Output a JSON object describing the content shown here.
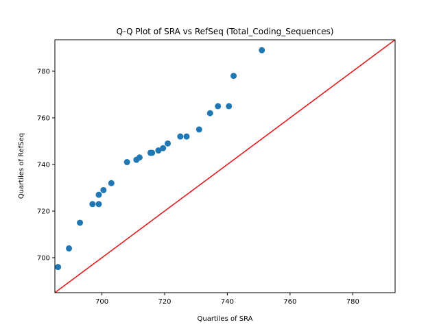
{
  "chart_data": {
    "type": "scatter",
    "title": "Q-Q Plot of SRA vs RefSeq (Total_Coding_Sequences)",
    "xlabel": "Quartiles of SRA",
    "ylabel": "Quartiles of RefSeq",
    "xlim": [
      685,
      793.5
    ],
    "ylim": [
      685,
      793.5
    ],
    "xticks": [
      700,
      720,
      740,
      760,
      780
    ],
    "yticks": [
      700,
      720,
      740,
      760,
      780
    ],
    "grid": false,
    "legend": "none",
    "point_color": "#1f77b4",
    "line_color": "#e41a1c",
    "reference_line": [
      [
        685,
        685
      ],
      [
        793.5,
        793.5
      ]
    ],
    "points": [
      {
        "x": 686.0,
        "y": 696.0
      },
      {
        "x": 689.5,
        "y": 704.0
      },
      {
        "x": 693.0,
        "y": 715.0
      },
      {
        "x": 697.0,
        "y": 723.0
      },
      {
        "x": 699.0,
        "y": 723.0
      },
      {
        "x": 699.0,
        "y": 727.0
      },
      {
        "x": 700.5,
        "y": 729.0
      },
      {
        "x": 703.0,
        "y": 732.0
      },
      {
        "x": 708.0,
        "y": 741.0
      },
      {
        "x": 711.0,
        "y": 742.0
      },
      {
        "x": 712.0,
        "y": 743.0
      },
      {
        "x": 715.5,
        "y": 745.0
      },
      {
        "x": 716.0,
        "y": 745.0
      },
      {
        "x": 718.0,
        "y": 746.0
      },
      {
        "x": 719.5,
        "y": 747.0
      },
      {
        "x": 721.0,
        "y": 749.0
      },
      {
        "x": 725.0,
        "y": 752.0
      },
      {
        "x": 727.0,
        "y": 752.0
      },
      {
        "x": 731.0,
        "y": 755.0
      },
      {
        "x": 734.5,
        "y": 762.0
      },
      {
        "x": 737.0,
        "y": 765.0
      },
      {
        "x": 740.5,
        "y": 765.0
      },
      {
        "x": 742.0,
        "y": 778.0
      },
      {
        "x": 751.0,
        "y": 789.0
      }
    ]
  }
}
